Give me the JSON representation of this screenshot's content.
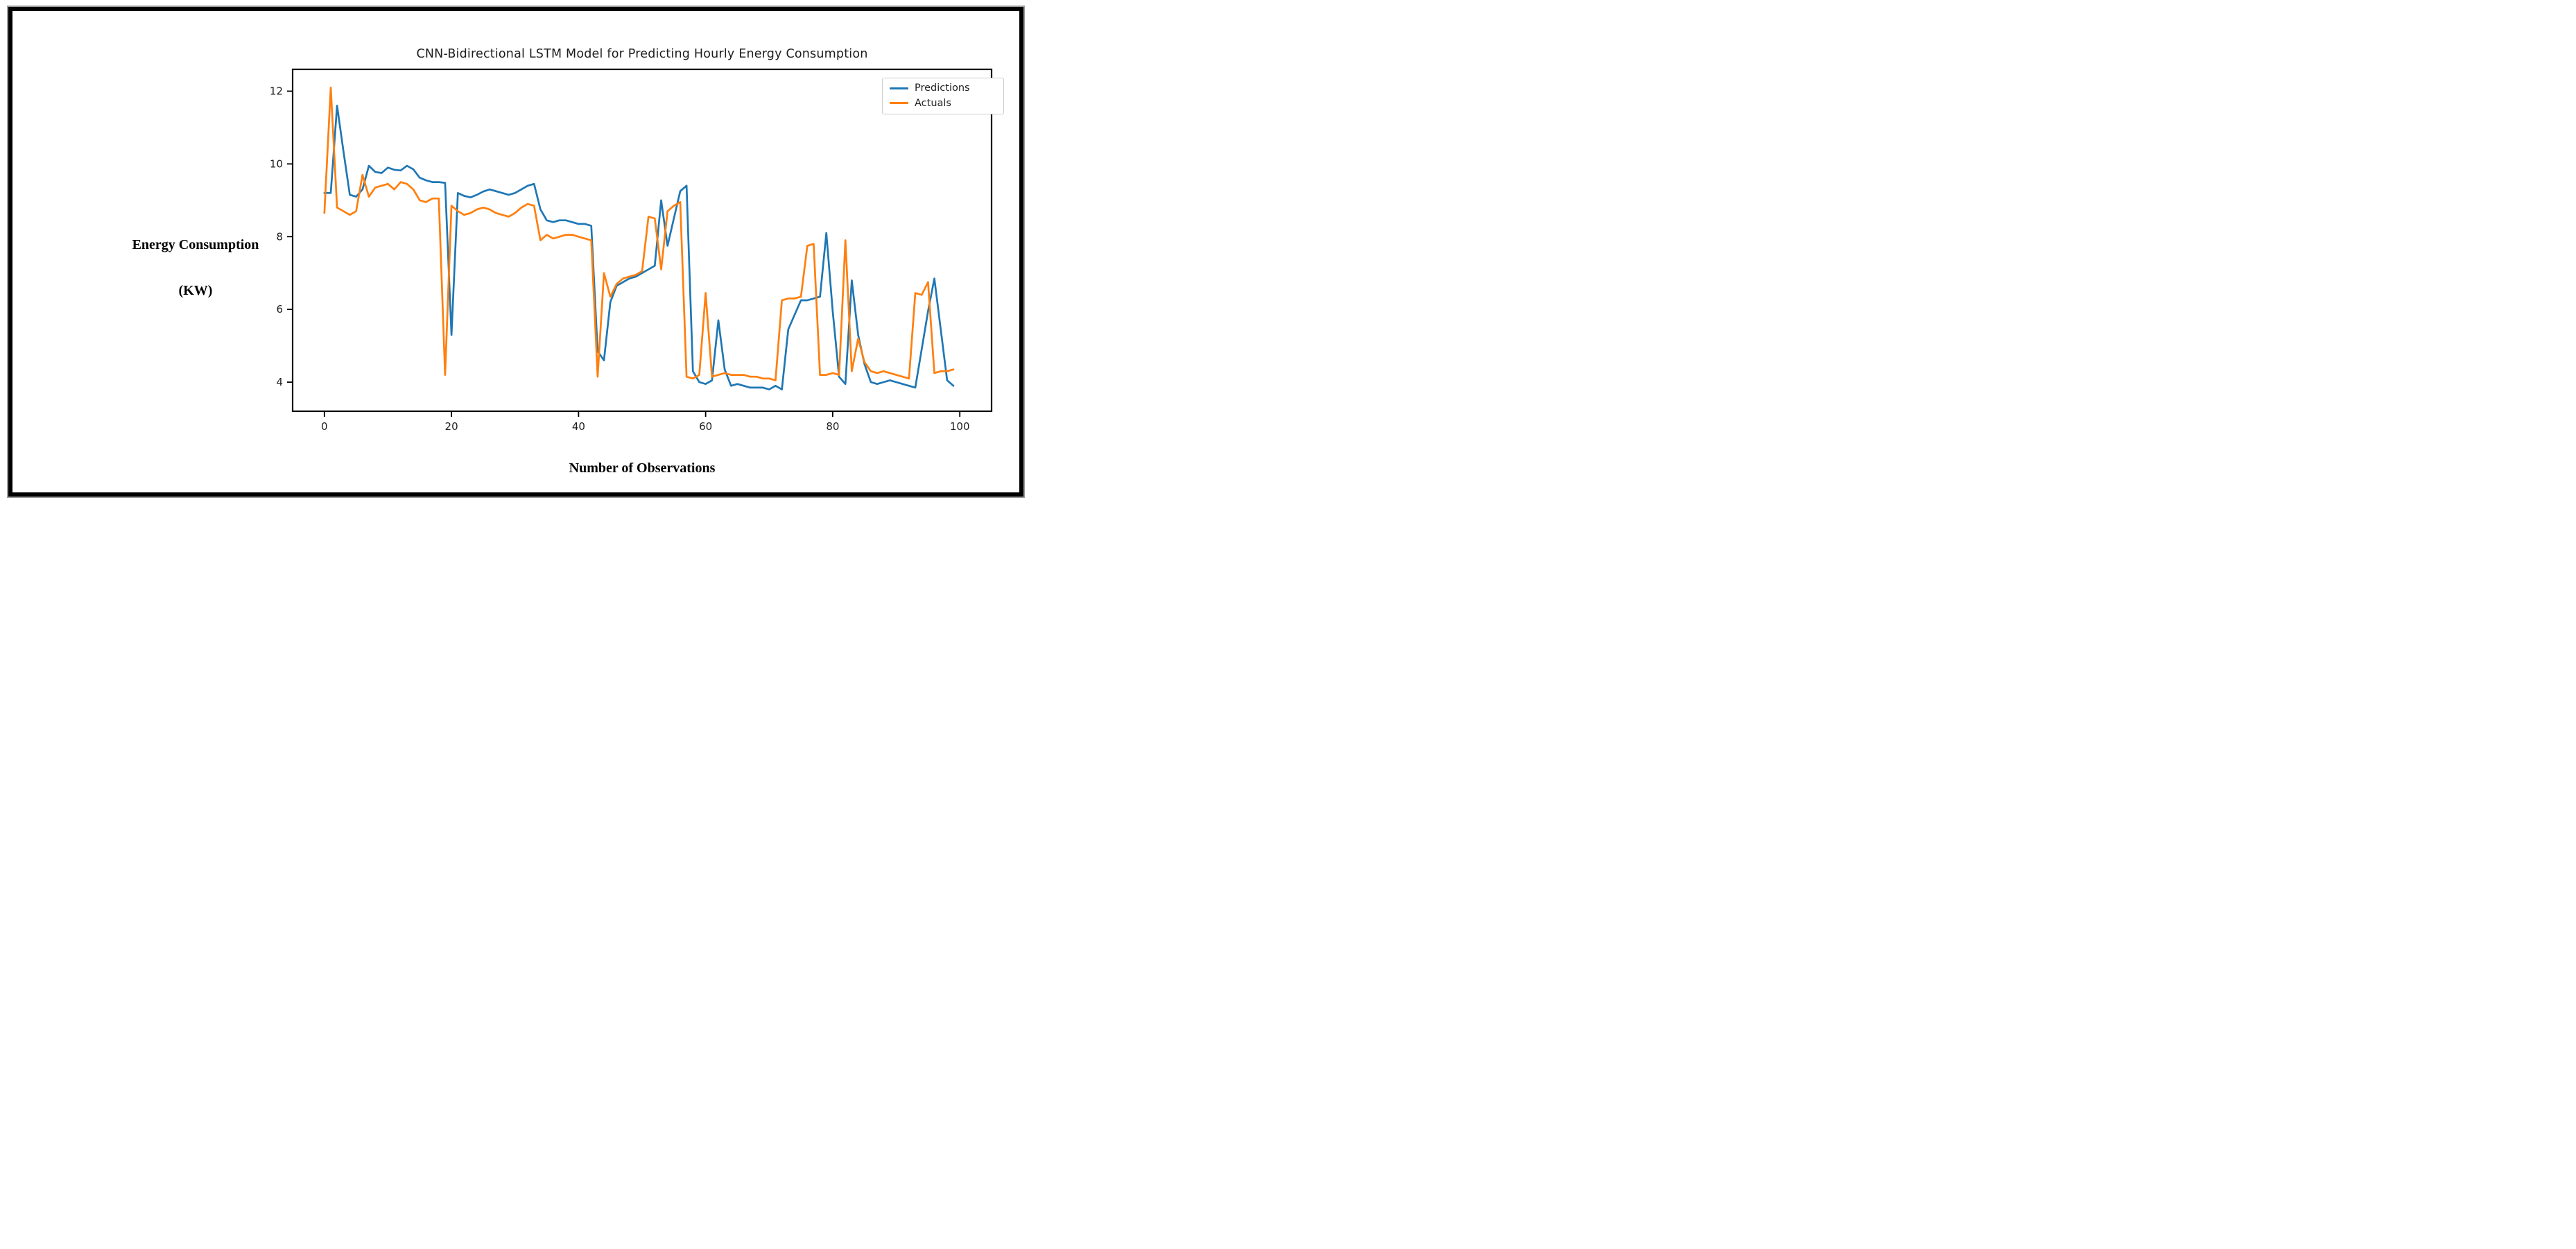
{
  "figure": {
    "title": "CNN-Bidirectional LSTM Model for Predicting Hourly Energy Consumption",
    "y_axis_label_line1": "Energy Consumption",
    "y_axis_label_line2": "(KW)",
    "x_axis_label": "Number of Observations"
  },
  "legend": {
    "entries": [
      {
        "label": "Predictions",
        "color": "#1f77b4"
      },
      {
        "label": "Actuals",
        "color": "#ff7f0e"
      }
    ]
  },
  "colors": {
    "frame": "#000000",
    "spine": "#000000",
    "tick_label": "#1f1f1f",
    "background": "#ffffff",
    "predictions_line": "#1f77b4",
    "actuals_line": "#ff7f0e"
  },
  "chart_data": {
    "type": "line",
    "title": "CNN-Bidirectional LSTM Model for Predicting Hourly Energy Consumption",
    "xlabel": "Number of Observations",
    "ylabel": "Energy Consumption (KW)",
    "xlim": [
      -5,
      105
    ],
    "ylim": [
      3.2,
      12.6
    ],
    "xticks": [
      0,
      20,
      40,
      60,
      80,
      100
    ],
    "yticks": [
      4,
      6,
      8,
      10,
      12
    ],
    "grid": false,
    "legend_position": "upper right",
    "x": [
      0,
      1,
      2,
      3,
      4,
      5,
      6,
      7,
      8,
      9,
      10,
      11,
      12,
      13,
      14,
      15,
      16,
      17,
      18,
      19,
      20,
      21,
      22,
      23,
      24,
      25,
      26,
      27,
      28,
      29,
      30,
      31,
      32,
      33,
      34,
      35,
      36,
      37,
      38,
      39,
      40,
      41,
      42,
      43,
      44,
      45,
      46,
      47,
      48,
      49,
      50,
      51,
      52,
      53,
      54,
      55,
      56,
      57,
      58,
      59,
      60,
      61,
      62,
      63,
      64,
      65,
      66,
      67,
      68,
      69,
      70,
      71,
      72,
      73,
      74,
      75,
      76,
      77,
      78,
      79,
      80,
      81,
      82,
      83,
      84,
      85,
      86,
      87,
      88,
      89,
      90,
      91,
      92,
      93,
      94,
      95,
      96,
      97,
      98,
      99
    ],
    "series": [
      {
        "name": "Predictions",
        "color": "#1f77b4",
        "values": [
          9.2,
          9.2,
          11.6,
          10.35,
          9.15,
          9.1,
          9.3,
          9.95,
          9.78,
          9.75,
          9.9,
          9.84,
          9.82,
          9.95,
          9.85,
          9.62,
          9.55,
          9.5,
          9.5,
          9.48,
          5.3,
          9.2,
          9.12,
          9.08,
          9.15,
          9.24,
          9.3,
          9.25,
          9.2,
          9.15,
          9.2,
          9.3,
          9.4,
          9.45,
          8.75,
          8.45,
          8.4,
          8.45,
          8.45,
          8.4,
          8.35,
          8.35,
          8.3,
          4.85,
          4.6,
          6.2,
          6.65,
          6.75,
          6.85,
          6.9,
          7.0,
          7.1,
          7.2,
          9.0,
          7.75,
          8.5,
          9.25,
          9.4,
          4.3,
          4.0,
          3.95,
          4.05,
          5.7,
          4.35,
          3.9,
          3.95,
          3.9,
          3.85,
          3.85,
          3.85,
          3.8,
          3.9,
          3.8,
          5.45,
          5.85,
          6.25,
          6.25,
          6.3,
          6.35,
          8.1,
          5.95,
          4.15,
          3.95,
          6.8,
          5.3,
          4.5,
          4.0,
          3.95,
          4.0,
          4.05,
          4.0,
          3.95,
          3.9,
          3.85,
          4.9,
          5.95,
          6.85,
          5.45,
          4.05,
          3.9
        ]
      },
      {
        "name": "Actuals",
        "color": "#ff7f0e",
        "values": [
          8.65,
          12.1,
          8.8,
          8.7,
          8.6,
          8.7,
          9.7,
          9.1,
          9.35,
          9.4,
          9.45,
          9.3,
          9.5,
          9.45,
          9.3,
          9.0,
          8.95,
          9.05,
          9.05,
          4.2,
          8.85,
          8.7,
          8.6,
          8.65,
          8.75,
          8.8,
          8.75,
          8.65,
          8.6,
          8.55,
          8.65,
          8.8,
          8.9,
          8.85,
          7.9,
          8.05,
          7.95,
          8.0,
          8.05,
          8.05,
          8.0,
          7.95,
          7.9,
          4.15,
          7.0,
          6.35,
          6.7,
          6.85,
          6.9,
          6.95,
          7.05,
          8.55,
          8.5,
          7.1,
          8.7,
          8.85,
          8.95,
          4.15,
          4.1,
          4.2,
          6.45,
          4.15,
          4.2,
          4.25,
          4.2,
          4.2,
          4.2,
          4.15,
          4.15,
          4.1,
          4.1,
          4.05,
          6.25,
          6.3,
          6.3,
          6.35,
          7.75,
          7.8,
          4.2,
          4.2,
          4.25,
          4.2,
          7.9,
          4.3,
          5.2,
          4.55,
          4.3,
          4.25,
          4.3,
          4.25,
          4.2,
          4.15,
          4.1,
          6.45,
          6.4,
          6.75,
          4.25,
          4.3,
          4.3,
          4.35
        ]
      }
    ]
  }
}
